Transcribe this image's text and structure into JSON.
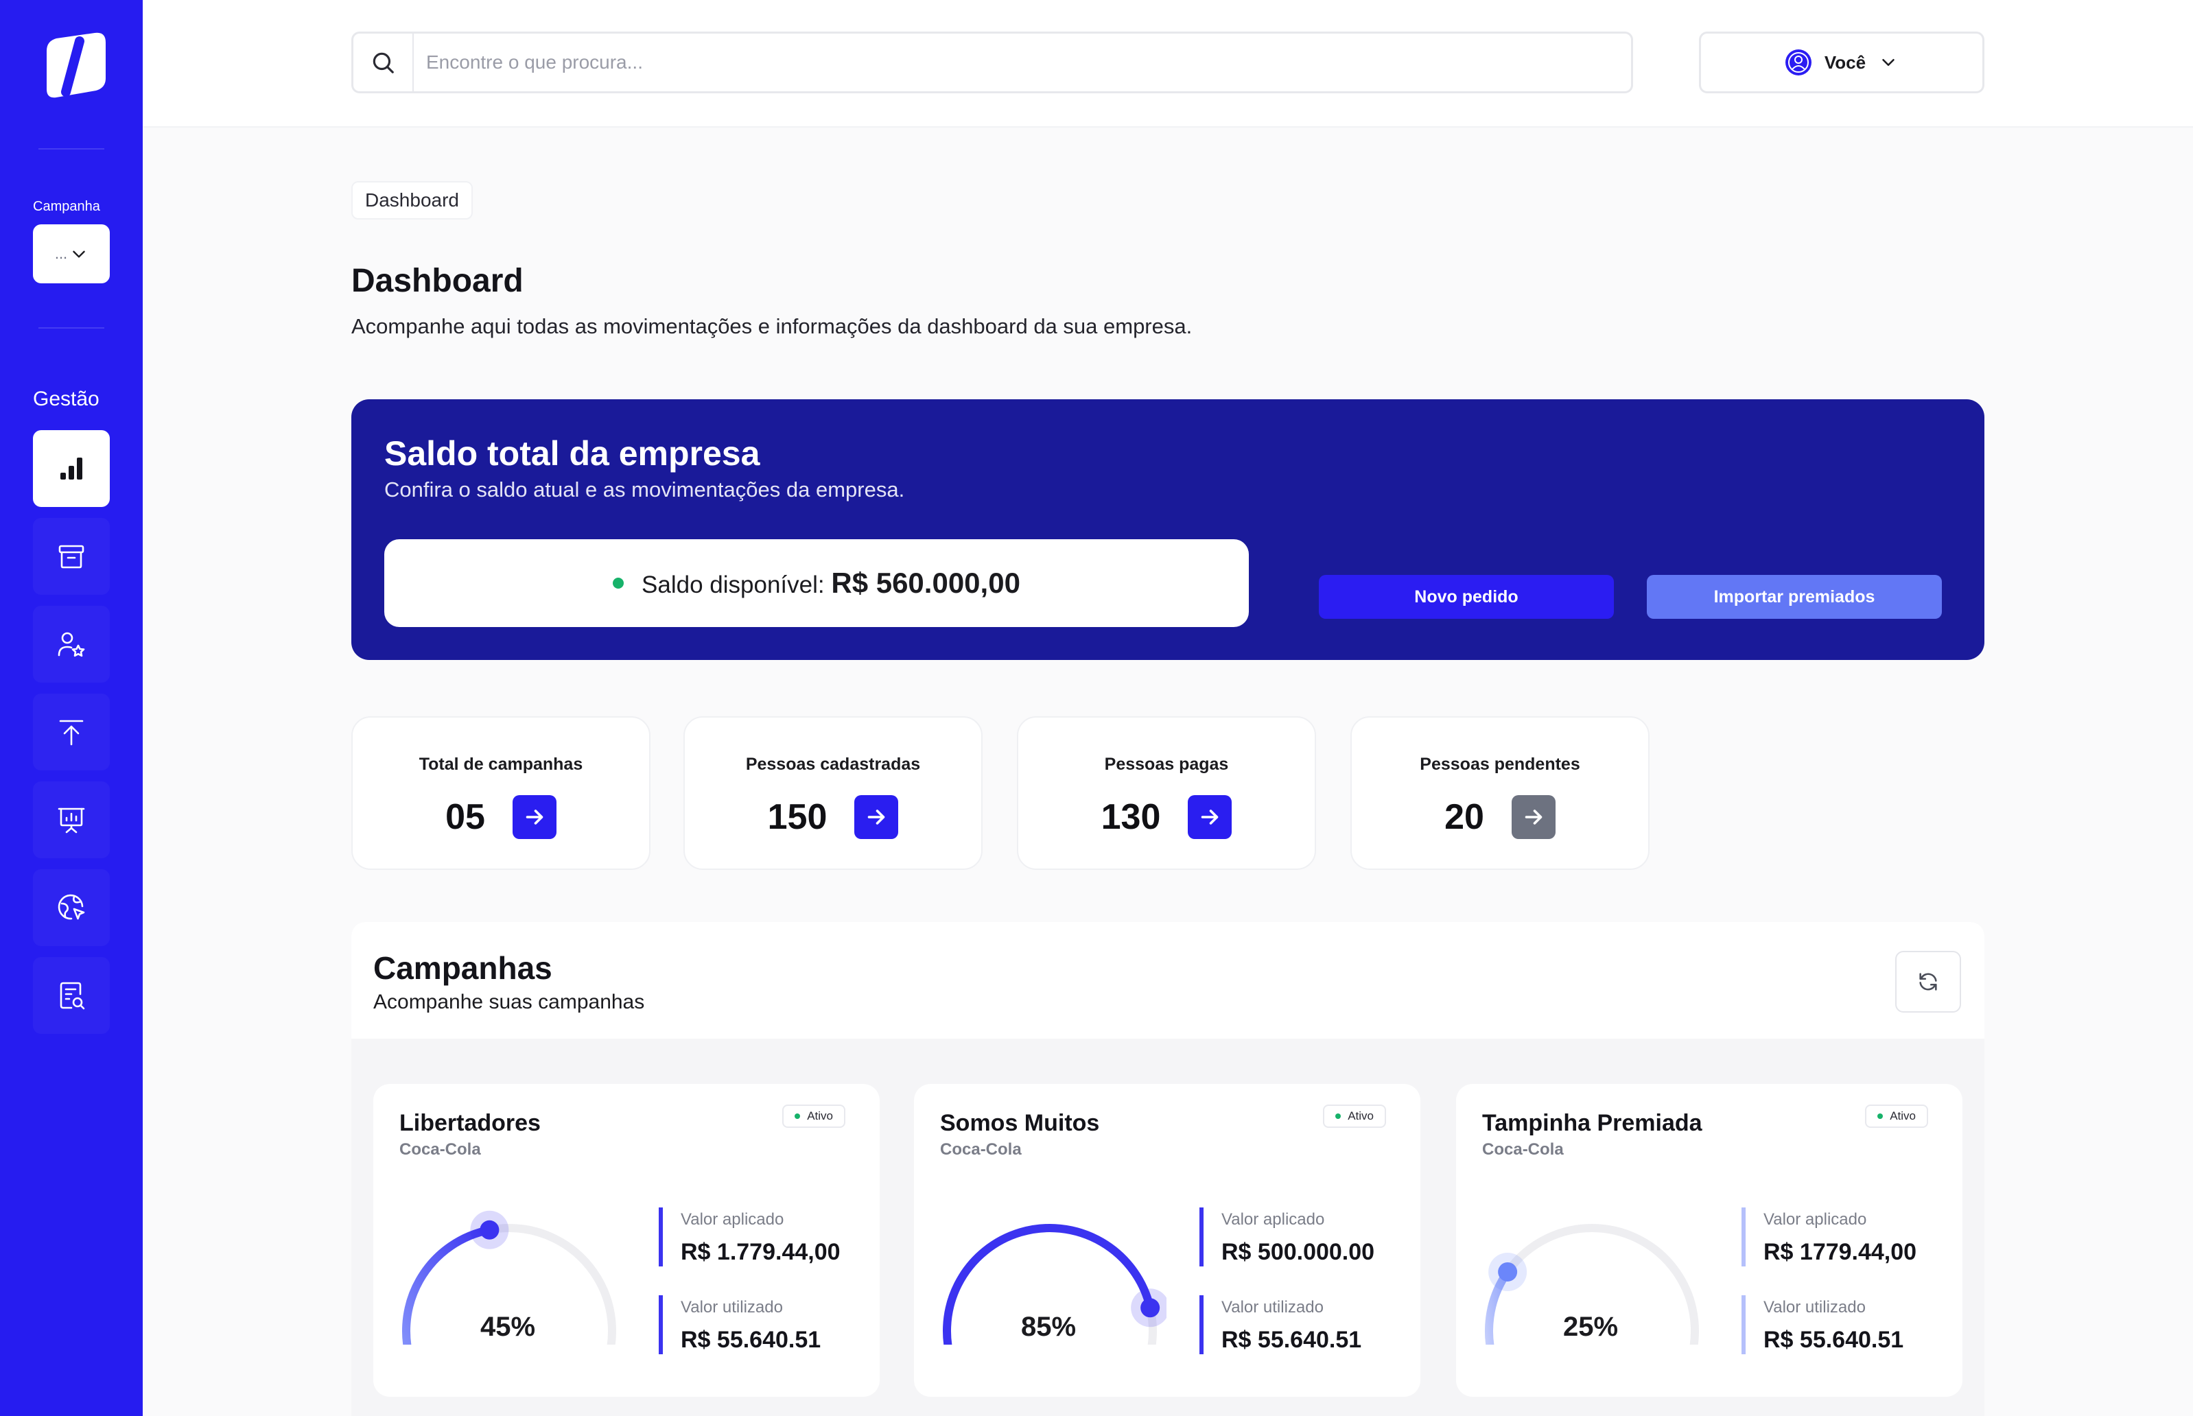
{
  "sidebar": {
    "campaign_label": "Campanha",
    "campaign_select_value": "...",
    "section_title": "Gestão",
    "items": [
      {
        "name": "dashboard",
        "icon": "bar-chart-icon",
        "active": true
      },
      {
        "name": "archive",
        "icon": "archive-box-icon",
        "active": false
      },
      {
        "name": "users",
        "icon": "user-star-icon",
        "active": false
      },
      {
        "name": "upload",
        "icon": "upload-icon",
        "active": false
      },
      {
        "name": "presentation",
        "icon": "presentation-chart-icon",
        "active": false
      },
      {
        "name": "globe",
        "icon": "globe-cursor-icon",
        "active": false
      },
      {
        "name": "reports",
        "icon": "document-search-icon",
        "active": false
      }
    ]
  },
  "topbar": {
    "search_placeholder": "Encontre o que procura...",
    "user_label": "Você"
  },
  "breadcrumb": "Dashboard",
  "page": {
    "title": "Dashboard",
    "subtitle": "Acompanhe aqui todas as movimentações e informações da dashboard da sua empresa."
  },
  "balance": {
    "title": "Saldo total da empresa",
    "subtitle": "Confira o saldo atual e as movimentações da empresa.",
    "available_label": "Saldo disponível:",
    "available_value": "R$ 560.000,00",
    "new_order_label": "Novo pedido",
    "import_label": "Importar premiados"
  },
  "stats": [
    {
      "label": "Total de campanhas",
      "value": "05"
    },
    {
      "label": "Pessoas cadastradas",
      "value": "150"
    },
    {
      "label": "Pessoas pagas",
      "value": "130"
    },
    {
      "label": "Pessoas pendentes",
      "value": "20"
    }
  ],
  "campaigns": {
    "title": "Campanhas",
    "subtitle": "Acompanhe suas campanhas",
    "cards": [
      {
        "name": "Libertadores",
        "brand": "Coca-Cola",
        "status": "Ativo",
        "percent": 45,
        "percent_label": "45%",
        "applied_label": "Valor aplicado",
        "applied_value": "R$ 1.779.44,00",
        "used_label": "Valor utilizado",
        "used_value": "R$ 55.640.51"
      },
      {
        "name": "Somos Muitos",
        "brand": "Coca-Cola",
        "status": "Ativo",
        "percent": 85,
        "percent_label": "85%",
        "applied_label": "Valor aplicado",
        "applied_value": "R$ 500.000.00",
        "used_label": "Valor utilizado",
        "used_value": "R$ 55.640.51"
      },
      {
        "name": "Tampinha Premiada",
        "brand": "Coca-Cola",
        "status": "Ativo",
        "percent": 25,
        "percent_label": "25%",
        "applied_label": "Valor aplicado",
        "applied_value": "R$ 1779.44,00",
        "used_label": "Valor utilizado",
        "used_value": "R$ 55.640.51"
      }
    ]
  },
  "colors": {
    "brand": "#261cf0",
    "balance_bg": "#1a1a99",
    "primary_button": "#2b1df2",
    "secondary_button": "#6277f5",
    "success": "#17b26a"
  }
}
